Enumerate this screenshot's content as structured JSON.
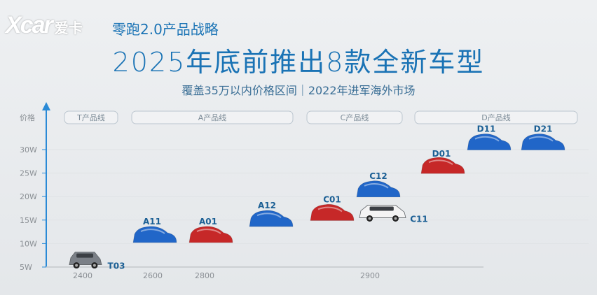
{
  "header": {
    "logo_text": "Xcar",
    "logo_sub": "爱卡",
    "section_title": "零跑2.0产品战略",
    "main_title": "2025年底前推出8款全新车型",
    "subtitle": "覆盖35万以内价格区间｜2022年进军海外市场"
  },
  "colors": {
    "accent": "#1a73b5",
    "blue_car": "#2166c8",
    "red_car": "#c62828",
    "gray_car": "#7b8087",
    "white_car": "#f4f4f4"
  },
  "chart_data": {
    "type": "scatter",
    "ylabel": "价格",
    "yticks": [
      "5W",
      "10W",
      "15W",
      "20W",
      "25W",
      "30W"
    ],
    "ylim_labels": [
      5,
      30
    ],
    "xticks": [
      "2400",
      "2600",
      "2800",
      "2900"
    ],
    "product_lines": [
      {
        "label": "T产品线"
      },
      {
        "label": "A产品线"
      },
      {
        "label": "C产品线"
      },
      {
        "label": "D产品线"
      }
    ],
    "points": [
      {
        "name": "T03",
        "price": 5.5,
        "line": "T产品线",
        "style": "gray_car"
      },
      {
        "name": "A11",
        "price": 10.8,
        "line": "A产品线",
        "style": "blue_car"
      },
      {
        "name": "A01",
        "price": 10.8,
        "line": "A产品线",
        "style": "red_car"
      },
      {
        "name": "A12",
        "price": 14.2,
        "line": "A产品线",
        "style": "blue_car"
      },
      {
        "name": "C01",
        "price": 15.5,
        "line": "C产品线",
        "style": "red_car"
      },
      {
        "name": "C11",
        "price": 15.5,
        "line": "C产品线",
        "style": "white_car"
      },
      {
        "name": "C12",
        "price": 20.5,
        "line": "C产品线",
        "style": "blue_car"
      },
      {
        "name": "D01",
        "price": 25.5,
        "line": "D产品线",
        "style": "red_car"
      },
      {
        "name": "D11",
        "price": 30.5,
        "line": "D产品线",
        "style": "blue_car"
      },
      {
        "name": "D21",
        "price": 30.5,
        "line": "D产品线",
        "style": "blue_car"
      }
    ]
  }
}
